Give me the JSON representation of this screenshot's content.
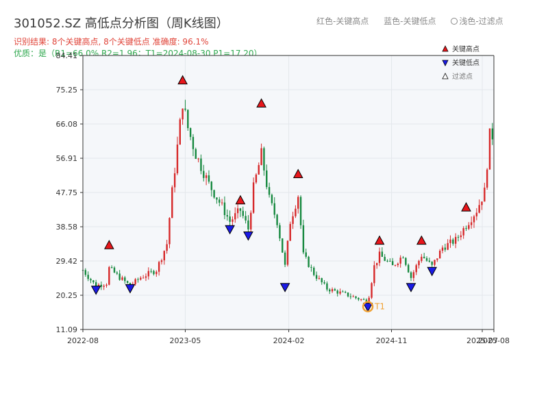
{
  "header": {
    "title": "301052.SZ 高低点分析图（周K线图）",
    "result": "识别结果: 8个关键高点, 8个关键低点  准确度: 96.1%",
    "quality": "优质：是（R1=66.0%  R2=1.96；T1=2024-08-30 P1=17.20）",
    "legend_red": "红色-关键高点",
    "legend_blue": "蓝色-关键低点",
    "legend_light": "浅色-过滤点"
  },
  "colors": {
    "up": "#d62728",
    "down": "#15883e",
    "high_marker": "#e8161b",
    "low_marker": "#1a1ae6",
    "t1_circle": "#f0a030",
    "plot_bg": "#f5f7fa"
  },
  "chart_data": {
    "type": "candlestick",
    "title": "301052.SZ 高低点分析图（周K线图）",
    "ylim": [
      11.09,
      84.41
    ],
    "yticks": [
      "11.09",
      "20.25",
      "29.42",
      "38.58",
      "47.75",
      "56.91",
      "66.08",
      "75.25",
      "84.41"
    ],
    "xticks": [
      "2022-08",
      "2023-05",
      "2024-02",
      "2024-11",
      "2025-07",
      "2025-08"
    ],
    "xtick_dates": [
      "2022-08-01",
      "2023-05-01",
      "2024-02-01",
      "2024-11-01",
      "2025-07-01",
      "2025-08-01"
    ],
    "xlim": [
      "2022-08-01",
      "2025-08-01"
    ],
    "legend": [
      "关键高点",
      "关键低点",
      "过滤点"
    ],
    "t1_label": "T1",
    "key_highs": [
      {
        "date": "2022-10-10",
        "price": 33.6
      },
      {
        "date": "2023-04-24",
        "price": 77.7
      },
      {
        "date": "2023-09-25",
        "price": 45.6
      },
      {
        "date": "2023-11-20",
        "price": 71.5
      },
      {
        "date": "2024-02-26",
        "price": 52.6
      },
      {
        "date": "2024-09-30",
        "price": 34.8
      },
      {
        "date": "2025-01-20",
        "price": 34.8
      },
      {
        "date": "2025-05-19",
        "price": 43.7
      }
    ],
    "key_lows": [
      {
        "date": "2022-09-05",
        "price": 21.8
      },
      {
        "date": "2022-12-05",
        "price": 22.2
      },
      {
        "date": "2023-08-28",
        "price": 38.0
      },
      {
        "date": "2023-10-16",
        "price": 36.3
      },
      {
        "date": "2024-01-22",
        "price": 22.5
      },
      {
        "date": "2024-08-30",
        "price": 17.2
      },
      {
        "date": "2024-12-23",
        "price": 22.5
      },
      {
        "date": "2025-02-17",
        "price": 26.8
      }
    ],
    "t1": {
      "date": "2024-08-30",
      "price": 17.2
    },
    "price_anchors": [
      [
        "2022-08-01",
        27
      ],
      [
        "2022-08-29",
        23.5
      ],
      [
        "2022-09-05",
        22.8
      ],
      [
        "2022-10-03",
        23.5
      ],
      [
        "2022-10-10",
        27.5
      ],
      [
        "2022-11-07",
        25
      ],
      [
        "2022-12-05",
        22.8
      ],
      [
        "2023-01-02",
        25
      ],
      [
        "2023-02-13",
        27
      ],
      [
        "2023-03-13",
        34
      ],
      [
        "2023-03-27",
        48
      ],
      [
        "2023-04-10",
        60
      ],
      [
        "2023-04-24",
        72
      ],
      [
        "2023-05-08",
        65
      ],
      [
        "2023-05-29",
        58
      ],
      [
        "2023-07-03",
        50
      ],
      [
        "2023-08-07",
        44
      ],
      [
        "2023-08-28",
        40
      ],
      [
        "2023-09-25",
        43
      ],
      [
        "2023-10-16",
        38
      ],
      [
        "2023-10-30",
        49
      ],
      [
        "2023-11-20",
        58
      ],
      [
        "2023-12-11",
        46
      ],
      [
        "2024-01-01",
        40
      ],
      [
        "2024-01-22",
        28
      ],
      [
        "2024-02-05",
        40
      ],
      [
        "2024-02-26",
        47
      ],
      [
        "2024-03-11",
        31
      ],
      [
        "2024-04-08",
        26
      ],
      [
        "2024-05-13",
        22
      ],
      [
        "2024-07-01",
        20.5
      ],
      [
        "2024-08-30",
        18.5
      ],
      [
        "2024-09-16",
        28
      ],
      [
        "2024-09-30",
        31
      ],
      [
        "2024-11-04",
        28
      ],
      [
        "2024-12-02",
        31
      ],
      [
        "2024-12-23",
        25
      ],
      [
        "2025-01-20",
        31
      ],
      [
        "2025-02-17",
        28
      ],
      [
        "2025-03-17",
        33
      ],
      [
        "2025-04-21",
        35
      ],
      [
        "2025-05-19",
        39
      ],
      [
        "2025-06-16",
        43
      ],
      [
        "2025-07-07",
        48
      ],
      [
        "2025-07-21",
        63
      ]
    ]
  }
}
